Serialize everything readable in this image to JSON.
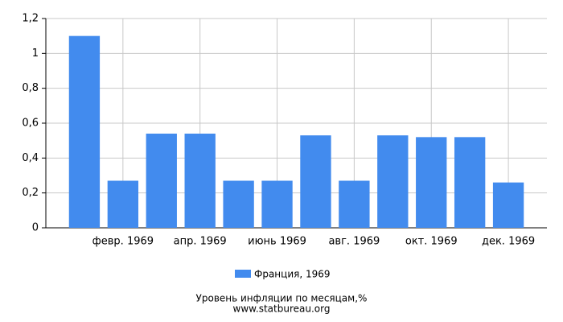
{
  "chart_data": {
    "type": "bar",
    "title": "Уровень инфляции по месяцам,%",
    "subtitle": "www.statbureau.org",
    "categories": [
      null,
      "февр. 1969",
      null,
      "апр. 1969",
      null,
      "июнь 1969",
      null,
      "авг. 1969",
      null,
      "окт. 1969",
      null,
      "дек. 1969"
    ],
    "series": [
      {
        "name": "Франция, 1969",
        "color": "#428bee",
        "values": [
          1.1,
          0.27,
          0.54,
          0.54,
          0.27,
          0.27,
          0.53,
          0.27,
          0.53,
          0.52,
          0.52,
          0.26
        ]
      }
    ],
    "ylim": [
      0,
      1.2
    ],
    "yticks": [
      0,
      {
        "value": 0.2,
        "label": "0,2"
      },
      {
        "value": 0.4,
        "label": "0,4"
      },
      {
        "value": 0.6,
        "label": "0,6"
      },
      {
        "value": 0.8,
        "label": "0,8"
      },
      1,
      {
        "value": 1.2,
        "label": "1,2"
      }
    ],
    "grid": true
  }
}
